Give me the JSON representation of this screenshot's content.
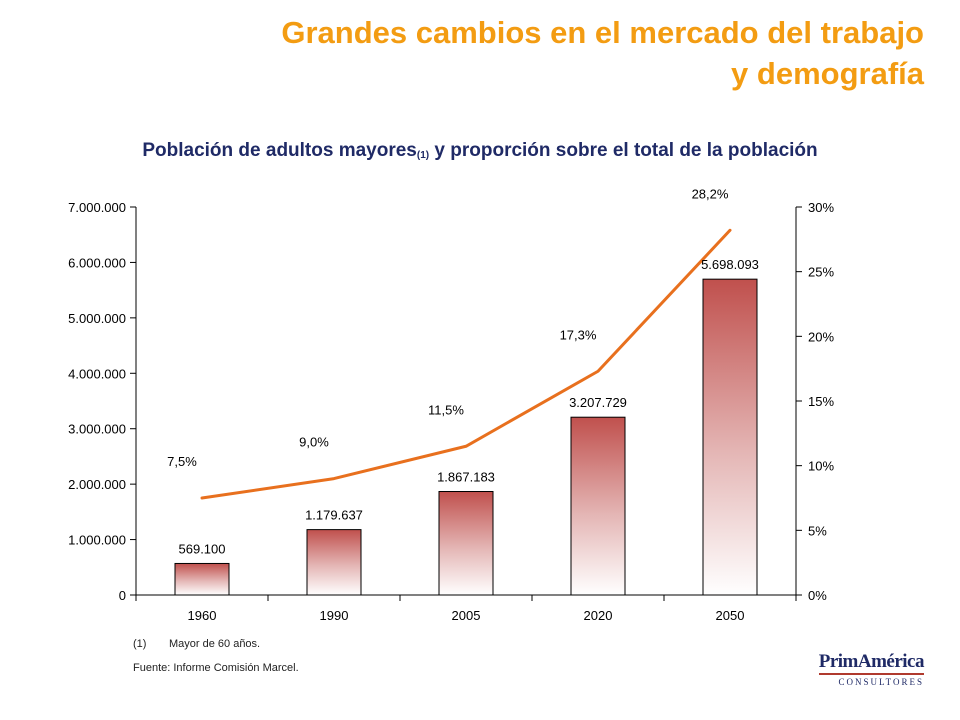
{
  "header": {
    "title_line1": "Grandes cambios en el mercado del trabajo",
    "title_line2": "y demografía",
    "subtitle_main": "Población de adultos mayores",
    "subtitle_note": "(1)",
    "subtitle_rest": " y proporción sobre el total de la población"
  },
  "colors": {
    "title": "#F39C12",
    "subtitle": "#1F2A66",
    "bar_top": "#C0504D",
    "line": "#E8701E"
  },
  "chart_data": {
    "type": "bar",
    "categories": [
      "1960",
      "1990",
      "2005",
      "2020",
      "2050"
    ],
    "series": [
      {
        "values": [
          569100,
          1179637,
          1867183,
          3207729,
          5698093
        ],
        "labels": [
          "569.100",
          "1.179.637",
          "1.867.183",
          "3.207.729",
          "5.698.093"
        ],
        "type": "bar",
        "axis": "left"
      },
      {
        "values": [
          7.5,
          9.0,
          11.5,
          17.3,
          28.2
        ],
        "labels": [
          "7,5%",
          "9,0%",
          "11,5%",
          "17,3%",
          "28,2%"
        ],
        "type": "line",
        "axis": "right"
      }
    ],
    "ylim": [
      0,
      7000000
    ],
    "y2lim": [
      0,
      30
    ],
    "left_ticks": [
      0,
      1000000,
      2000000,
      3000000,
      4000000,
      5000000,
      6000000,
      7000000
    ],
    "left_tick_labels": [
      "0",
      "1.000.000",
      "2.000.000",
      "3.000.000",
      "4.000.000",
      "5.000.000",
      "6.000.000",
      "7.000.000"
    ],
    "right_ticks": [
      0,
      5,
      10,
      15,
      20,
      25,
      30
    ],
    "right_tick_labels": [
      "0%",
      "5%",
      "10%",
      "15%",
      "20%",
      "25%",
      "30%"
    ],
    "grid": false,
    "legend": "none"
  },
  "footer": {
    "note_num": "(1)",
    "note_text": "Mayor de 60 años.",
    "source": "Fuente: Informe Comisión Marcel."
  },
  "logo": {
    "name": "PrimAmérica",
    "sub": "CONSULTORES"
  }
}
